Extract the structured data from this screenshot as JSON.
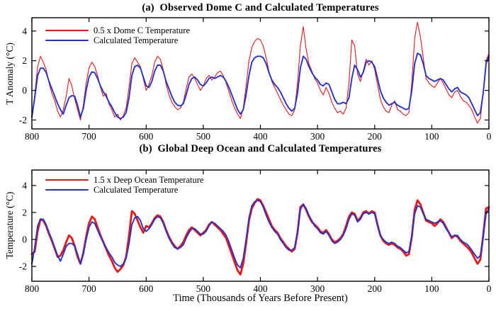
{
  "figure": {
    "background": "#ffffff",
    "axis_color": "#000000"
  },
  "chart_data": [
    {
      "type": "line",
      "title": "(a)  Observed Dome C and Calculated Temperatures",
      "xlabel": "",
      "ylabel": "T Anomaly (°C)",
      "xlim": [
        800,
        0
      ],
      "ylim": [
        -2.6,
        4.9
      ],
      "x_axis_reversed": true,
      "grid": false,
      "legend_position": "top-left-inside",
      "x_ticks": [
        800,
        700,
        600,
        500,
        400,
        300,
        200,
        100,
        0
      ],
      "y_ticks": [
        -2,
        0,
        2,
        4
      ],
      "x": [
        800,
        795,
        790,
        785,
        780,
        775,
        770,
        765,
        760,
        755,
        750,
        745,
        740,
        735,
        730,
        725,
        720,
        715,
        710,
        705,
        700,
        695,
        690,
        685,
        680,
        675,
        670,
        665,
        660,
        655,
        650,
        645,
        640,
        635,
        630,
        625,
        620,
        615,
        610,
        605,
        600,
        595,
        590,
        585,
        580,
        575,
        570,
        565,
        560,
        555,
        550,
        545,
        540,
        535,
        530,
        525,
        520,
        515,
        510,
        505,
        500,
        495,
        490,
        485,
        480,
        475,
        470,
        465,
        460,
        455,
        450,
        445,
        440,
        435,
        430,
        425,
        420,
        415,
        410,
        405,
        400,
        395,
        390,
        385,
        380,
        375,
        370,
        365,
        360,
        355,
        350,
        345,
        340,
        335,
        330,
        325,
        320,
        315,
        310,
        305,
        300,
        295,
        290,
        285,
        280,
        275,
        270,
        265,
        260,
        255,
        250,
        245,
        240,
        235,
        230,
        225,
        220,
        215,
        210,
        205,
        200,
        195,
        190,
        185,
        180,
        175,
        170,
        165,
        160,
        155,
        150,
        145,
        140,
        135,
        130,
        125,
        120,
        115,
        110,
        105,
        100,
        95,
        90,
        85,
        80,
        75,
        70,
        65,
        60,
        55,
        50,
        45,
        40,
        35,
        30,
        25,
        20,
        15,
        10,
        5,
        0
      ],
      "series": [
        {
          "name": "0.5 x Dome C Temperature",
          "color": "#ee1515",
          "line_width": 1.1,
          "values": [
            -1.8,
            -0.3,
            1.6,
            2.3,
            1.9,
            1.4,
            0.5,
            -0.2,
            -0.7,
            -1.4,
            -1.8,
            -1.3,
            -0.4,
            0.8,
            0.3,
            -0.6,
            -1.3,
            -2.0,
            -1.0,
            0.5,
            1.5,
            1.9,
            1.6,
            1.0,
            0.2,
            -0.4,
            -0.2,
            -0.9,
            -1.3,
            -1.8,
            -1.6,
            -2.0,
            -1.7,
            -1.2,
            0.2,
            1.8,
            2.2,
            1.9,
            1.6,
            0.8,
            0.0,
            0.4,
            1.0,
            1.9,
            2.3,
            2.1,
            1.4,
            0.4,
            -0.3,
            -0.8,
            -1.1,
            -1.3,
            -1.2,
            -0.8,
            0.1,
            0.9,
            1.1,
            0.8,
            0.4,
            0.0,
            0.3,
            0.8,
            1.0,
            0.7,
            0.9,
            1.2,
            1.3,
            1.0,
            0.5,
            -0.1,
            -0.7,
            -1.2,
            -1.6,
            -1.9,
            -1.2,
            0.3,
            2.0,
            2.9,
            3.3,
            3.5,
            3.4,
            3.0,
            2.2,
            1.3,
            0.6,
            0.2,
            -0.2,
            -0.6,
            -1.0,
            -1.3,
            -1.6,
            -1.7,
            -1.3,
            0.5,
            3.0,
            4.3,
            2.8,
            1.8,
            1.3,
            0.8,
            0.5,
            0.0,
            -0.3,
            0.2,
            -0.2,
            -0.8,
            -1.2,
            -1.5,
            -1.4,
            -1.6,
            -1.2,
            0.5,
            3.4,
            3.0,
            1.1,
            0.6,
            1.3,
            2.1,
            1.7,
            2.0,
            1.4,
            0.4,
            -0.6,
            -1.1,
            -1.4,
            -1.5,
            -1.0,
            -0.7,
            -1.3,
            -1.4,
            -1.6,
            -1.7,
            -1.5,
            0.5,
            3.5,
            4.6,
            3.6,
            2.2,
            0.8,
            0.5,
            0.3,
            0.2,
            0.5,
            0.8,
            0.5,
            0.1,
            -0.3,
            -0.5,
            -0.1,
            0.0,
            -0.4,
            -0.7,
            -0.8,
            -1.0,
            -1.3,
            -1.8,
            -2.2,
            -1.9,
            -0.2,
            2.0,
            2.5
          ]
        },
        {
          "name": "Calculated Temperature",
          "color": "#2333cc",
          "line_width": 1.9,
          "values": [
            -1.8,
            -0.5,
            1.0,
            1.5,
            1.5,
            1.2,
            0.6,
            0.1,
            -0.4,
            -0.9,
            -1.3,
            -1.6,
            -1.0,
            -0.5,
            -0.35,
            -0.4,
            -1.0,
            -1.8,
            -1.2,
            0.0,
            0.9,
            1.25,
            1.2,
            0.8,
            0.3,
            -0.1,
            -0.4,
            -0.8,
            -1.1,
            -1.5,
            -1.8,
            -1.9,
            -1.8,
            -1.5,
            -0.5,
            1.0,
            1.6,
            1.7,
            1.5,
            0.9,
            0.3,
            0.2,
            0.6,
            1.3,
            1.7,
            1.7,
            1.3,
            0.6,
            0.1,
            -0.4,
            -0.8,
            -1.0,
            -1.05,
            -0.9,
            -0.3,
            0.4,
            0.8,
            0.9,
            0.7,
            0.4,
            0.3,
            0.5,
            0.8,
            0.9,
            0.8,
            0.9,
            1.0,
            0.9,
            0.6,
            0.2,
            -0.3,
            -0.8,
            -1.3,
            -1.6,
            -1.3,
            -0.3,
            1.0,
            1.9,
            2.2,
            2.3,
            2.3,
            2.2,
            1.8,
            1.2,
            0.7,
            0.4,
            0.2,
            -0.1,
            -0.5,
            -0.9,
            -1.2,
            -1.4,
            -1.2,
            -0.2,
            1.5,
            2.3,
            2.1,
            1.6,
            1.2,
            0.9,
            0.7,
            0.4,
            0.3,
            0.5,
            0.4,
            -0.1,
            -0.6,
            -0.9,
            -0.9,
            -0.8,
            -0.9,
            -0.5,
            0.8,
            1.7,
            1.4,
            0.9,
            1.2,
            1.9,
            2.0,
            1.9,
            1.6,
            0.8,
            0.0,
            -0.5,
            -0.8,
            -1.0,
            -0.9,
            -0.8,
            -1.0,
            -1.1,
            -1.2,
            -1.3,
            -1.2,
            0.0,
            1.8,
            2.5,
            2.4,
            1.8,
            1.0,
            0.8,
            0.7,
            0.6,
            0.7,
            0.8,
            0.7,
            0.4,
            0.1,
            -0.1,
            0.1,
            0.2,
            -0.1,
            -0.2,
            -0.3,
            -0.5,
            -0.9,
            -1.3,
            -1.7,
            -1.5,
            -0.2,
            1.8,
            2.3
          ]
        }
      ]
    },
    {
      "type": "line",
      "title": "(b)  Global Deep Ocean and Calculated Temperatures",
      "xlabel": "Time (Thousands of Years Before Present)",
      "ylabel": "Temperature (°C)",
      "xlim": [
        800,
        0
      ],
      "ylim": [
        -3.1,
        5.15
      ],
      "x_axis_reversed": true,
      "grid": false,
      "legend_position": "top-left-inside",
      "x_ticks": [
        800,
        700,
        600,
        500,
        400,
        300,
        200,
        100,
        0
      ],
      "y_ticks": [
        -2,
        0,
        2,
        4
      ],
      "x": [
        800,
        795,
        790,
        785,
        780,
        775,
        770,
        765,
        760,
        755,
        750,
        745,
        740,
        735,
        730,
        725,
        720,
        715,
        710,
        705,
        700,
        695,
        690,
        685,
        680,
        675,
        670,
        665,
        660,
        655,
        650,
        645,
        640,
        635,
        630,
        625,
        620,
        615,
        610,
        605,
        600,
        595,
        590,
        585,
        580,
        575,
        570,
        565,
        560,
        555,
        550,
        545,
        540,
        535,
        530,
        525,
        520,
        515,
        510,
        505,
        500,
        495,
        490,
        485,
        480,
        475,
        470,
        465,
        460,
        455,
        450,
        445,
        440,
        435,
        430,
        425,
        420,
        415,
        410,
        405,
        400,
        395,
        390,
        385,
        380,
        375,
        370,
        365,
        360,
        355,
        350,
        345,
        340,
        335,
        330,
        325,
        320,
        315,
        310,
        305,
        300,
        295,
        290,
        285,
        280,
        275,
        270,
        265,
        260,
        255,
        250,
        245,
        240,
        235,
        230,
        225,
        220,
        215,
        210,
        205,
        200,
        195,
        190,
        185,
        180,
        175,
        170,
        165,
        160,
        155,
        150,
        145,
        140,
        135,
        130,
        125,
        120,
        115,
        110,
        105,
        100,
        95,
        90,
        85,
        80,
        75,
        70,
        65,
        60,
        55,
        50,
        45,
        40,
        35,
        30,
        25,
        20,
        15,
        10,
        5,
        0
      ],
      "series": [
        {
          "name": "1.5 x Deep Ocean Temperature",
          "color": "#ee1515",
          "line_width": 2.8,
          "values": [
            -1.1,
            -0.9,
            0.6,
            1.5,
            1.4,
            1.0,
            0.4,
            -0.1,
            -0.7,
            -1.3,
            -1.2,
            -0.8,
            -0.2,
            0.3,
            0.1,
            -0.5,
            -1.3,
            -1.8,
            -1.0,
            0.2,
            1.2,
            1.7,
            1.5,
            0.9,
            0.3,
            -0.2,
            -0.7,
            -1.2,
            -1.6,
            -2.1,
            -2.4,
            -2.2,
            -1.9,
            -1.3,
            0.3,
            2.1,
            1.9,
            1.4,
            0.9,
            0.5,
            1.0,
            0.9,
            1.2,
            1.6,
            1.8,
            1.7,
            1.3,
            0.7,
            0.2,
            -0.2,
            -0.5,
            -0.7,
            -0.5,
            -0.2,
            0.3,
            0.7,
            0.9,
            0.7,
            0.5,
            0.3,
            0.5,
            0.7,
            1.1,
            1.3,
            1.1,
            0.9,
            0.7,
            0.4,
            0.1,
            -0.5,
            -1.1,
            -1.7,
            -2.3,
            -2.6,
            -1.8,
            -0.3,
            1.4,
            2.3,
            2.7,
            3.0,
            2.9,
            2.5,
            2.0,
            1.5,
            1.0,
            0.7,
            0.5,
            0.1,
            -0.2,
            -0.5,
            -0.7,
            -0.9,
            -0.7,
            0.5,
            2.4,
            2.6,
            2.2,
            1.7,
            1.3,
            1.1,
            0.9,
            0.6,
            0.5,
            0.7,
            0.4,
            0.0,
            -0.2,
            -0.1,
            0.1,
            0.4,
            1.0,
            1.7,
            2.0,
            1.9,
            1.4,
            1.6,
            2.0,
            2.1,
            1.9,
            2.1,
            2.0,
            1.1,
            0.3,
            -0.1,
            -0.3,
            -0.4,
            -0.3,
            -0.4,
            -0.6,
            -0.7,
            -0.9,
            -1.2,
            -1.1,
            0.2,
            2.2,
            2.9,
            2.6,
            2.0,
            1.4,
            1.3,
            1.2,
            1.0,
            1.2,
            1.5,
            1.3,
            0.9,
            0.5,
            0.1,
            0.3,
            0.2,
            -0.1,
            -0.3,
            -0.5,
            -0.7,
            -1.0,
            -1.4,
            -1.8,
            -1.5,
            0.3,
            2.3,
            2.4
          ]
        },
        {
          "name": "Calculated Temperature",
          "color": "#2333cc",
          "line_width": 1.9,
          "values": [
            -1.8,
            -0.6,
            1.0,
            1.5,
            1.5,
            1.1,
            0.5,
            0.0,
            -0.6,
            -1.2,
            -1.6,
            -1.1,
            -0.5,
            -0.3,
            -0.3,
            -0.5,
            -1.1,
            -1.8,
            -1.1,
            0.0,
            0.9,
            1.3,
            1.2,
            0.7,
            0.2,
            -0.2,
            -0.6,
            -1.0,
            -1.3,
            -1.7,
            -1.9,
            -2.0,
            -1.8,
            -1.4,
            -0.3,
            1.1,
            1.6,
            1.7,
            1.4,
            0.8,
            0.6,
            0.8,
            1.1,
            1.5,
            1.7,
            1.6,
            1.2,
            0.6,
            0.1,
            -0.3,
            -0.6,
            -0.7,
            -0.6,
            -0.4,
            0.1,
            0.5,
            0.8,
            0.8,
            0.6,
            0.4,
            0.4,
            0.6,
            1.0,
            1.3,
            1.2,
            1.0,
            0.8,
            0.6,
            0.3,
            -0.2,
            -0.8,
            -1.4,
            -1.9,
            -2.1,
            -1.4,
            0.0,
            1.6,
            2.5,
            2.8,
            2.9,
            2.8,
            2.4,
            1.8,
            1.3,
            0.9,
            0.6,
            0.4,
            0.0,
            -0.3,
            -0.6,
            -0.8,
            -0.8,
            -0.6,
            0.6,
            2.2,
            2.6,
            2.3,
            1.8,
            1.4,
            1.0,
            0.8,
            0.5,
            0.4,
            0.6,
            0.3,
            -0.1,
            -0.3,
            -0.2,
            0.0,
            0.3,
            0.8,
            1.5,
            1.9,
            1.8,
            1.3,
            1.5,
            1.9,
            2.0,
            1.9,
            2.0,
            1.9,
            1.0,
            0.3,
            0.0,
            -0.2,
            -0.3,
            -0.2,
            -0.3,
            -0.5,
            -0.6,
            -0.8,
            -1.0,
            -0.9,
            0.3,
            1.9,
            2.5,
            2.4,
            1.9,
            1.5,
            1.4,
            1.3,
            1.2,
            1.3,
            1.4,
            1.2,
            0.8,
            0.5,
            0.2,
            0.3,
            0.3,
            0.0,
            -0.2,
            -0.3,
            -0.5,
            -0.8,
            -1.1,
            -1.4,
            -1.2,
            0.2,
            1.9,
            2.3
          ]
        }
      ]
    }
  ]
}
